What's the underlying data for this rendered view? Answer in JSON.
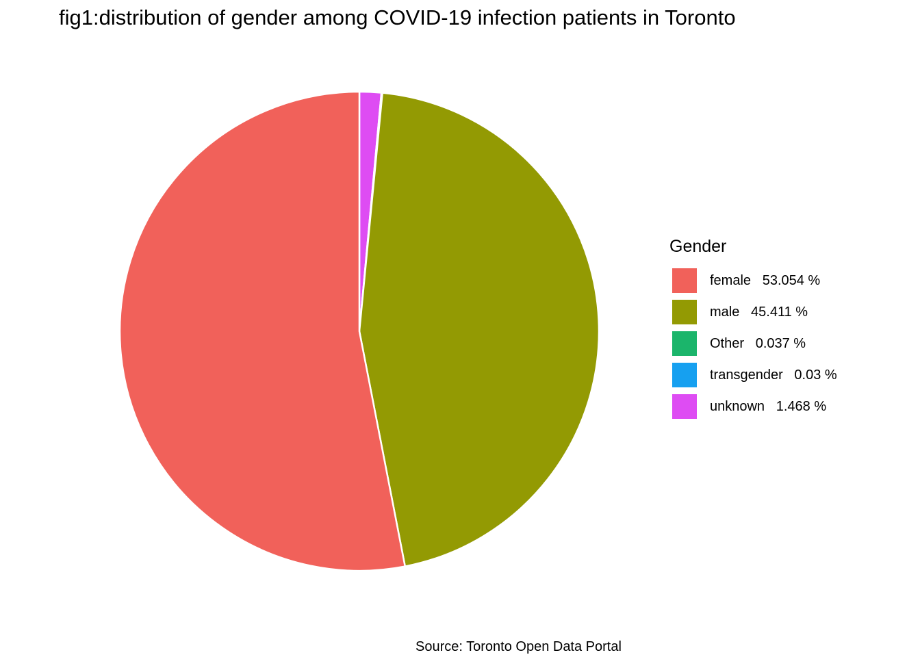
{
  "chart_data": {
    "type": "pie",
    "title": "fig1:distribution of gender among COVID-19 infection patients in Toronto",
    "caption": "Source: Toronto Open Data Portal",
    "legend_title": "Gender",
    "legend_position": "right",
    "slices": [
      {
        "category": "female",
        "value": 53.054,
        "label": "female   53.054 %",
        "color": "#F1615A"
      },
      {
        "category": "male",
        "value": 45.411,
        "label": "male   45.411 %",
        "color": "#939A03"
      },
      {
        "category": "Other",
        "value": 0.037,
        "label": "Other   0.037 %",
        "color": "#1BB56B"
      },
      {
        "category": "transgender",
        "value": 0.03,
        "label": "transgender   0.03 %",
        "color": "#16A0F0"
      },
      {
        "category": "unknown",
        "value": 1.468,
        "label": "unknown   1.468 %",
        "color": "#DE4CF3"
      }
    ]
  }
}
